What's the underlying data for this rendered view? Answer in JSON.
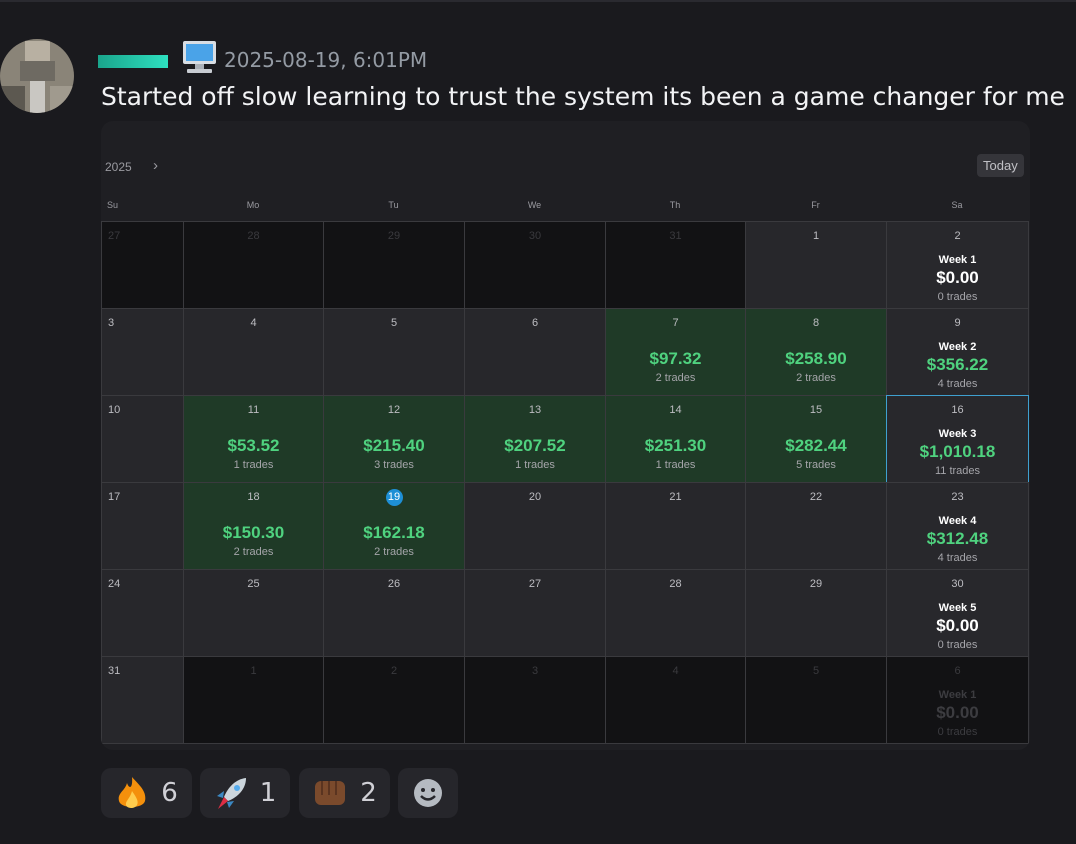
{
  "message": {
    "timestamp": "2025-08-19, 6:01PM",
    "text": "Started off slow learning to trust the system its been a game changer for me"
  },
  "calendar": {
    "year": "2025",
    "nav": "›",
    "today_button": "Today",
    "weekdays": [
      "Su",
      "Mo",
      "Tu",
      "We",
      "Th",
      "Fr",
      "Sa"
    ],
    "rows": [
      [
        {
          "day": 27,
          "muted": true
        },
        {
          "day": 28,
          "muted": true
        },
        {
          "day": 29,
          "muted": true
        },
        {
          "day": 30,
          "muted": true
        },
        {
          "day": 31,
          "muted": true
        },
        {
          "day": 1
        },
        {
          "day": 2,
          "week": "Week 1",
          "amount": "$0.00",
          "trades": "0 trades"
        }
      ],
      [
        {
          "day": 3
        },
        {
          "day": 4
        },
        {
          "day": 5
        },
        {
          "day": 6
        },
        {
          "day": 7,
          "profit": true,
          "amount": "$97.32",
          "trades": "2 trades"
        },
        {
          "day": 8,
          "profit": true,
          "amount": "$258.90",
          "trades": "2 trades"
        },
        {
          "day": 9,
          "week": "Week 2",
          "profit_text": true,
          "amount": "$356.22",
          "trades": "4 trades"
        }
      ],
      [
        {
          "day": 10
        },
        {
          "day": 11,
          "profit": true,
          "amount": "$53.52",
          "trades": "1 trades"
        },
        {
          "day": 12,
          "profit": true,
          "amount": "$215.40",
          "trades": "3 trades"
        },
        {
          "day": 13,
          "profit": true,
          "amount": "$207.52",
          "trades": "1 trades"
        },
        {
          "day": 14,
          "profit": true,
          "amount": "$251.30",
          "trades": "1 trades"
        },
        {
          "day": 15,
          "profit": true,
          "amount": "$282.44",
          "trades": "5 trades"
        },
        {
          "day": 16,
          "week": "Week 3",
          "profit_text": true,
          "selected": true,
          "amount": "$1,010.18",
          "trades": "11 trades"
        }
      ],
      [
        {
          "day": 17
        },
        {
          "day": 18,
          "profit": true,
          "amount": "$150.30",
          "trades": "2 trades"
        },
        {
          "day": 19,
          "today": true,
          "profit": true,
          "amount": "$162.18",
          "trades": "2 trades"
        },
        {
          "day": 20
        },
        {
          "day": 21
        },
        {
          "day": 22
        },
        {
          "day": 23,
          "week": "Week 4",
          "profit_text": true,
          "amount": "$312.48",
          "trades": "4 trades"
        }
      ],
      [
        {
          "day": 24
        },
        {
          "day": 25
        },
        {
          "day": 26
        },
        {
          "day": 27
        },
        {
          "day": 28
        },
        {
          "day": 29
        },
        {
          "day": 30,
          "week": "Week 5",
          "amount": "$0.00",
          "trades": "0 trades"
        }
      ],
      [
        {
          "day": 31
        },
        {
          "day": 1,
          "muted": true
        },
        {
          "day": 2,
          "muted": true
        },
        {
          "day": 3,
          "muted": true
        },
        {
          "day": 4,
          "muted": true
        },
        {
          "day": 5,
          "muted": true
        },
        {
          "day": 6,
          "muted": true,
          "week": "Week 1",
          "amount": "$0.00",
          "trades": "0 trades"
        }
      ]
    ]
  },
  "reactions": [
    {
      "count": 6
    },
    {
      "count": 1
    },
    {
      "count": 2
    }
  ]
}
